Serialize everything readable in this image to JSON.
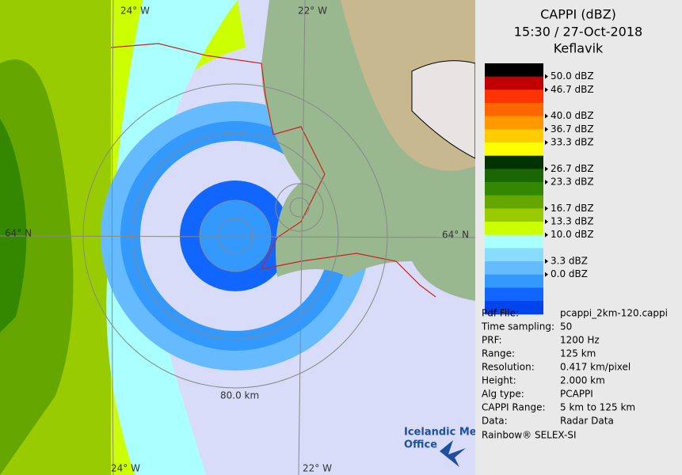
{
  "header": {
    "title": "CAPPI (dBZ)",
    "time": "15:30 / 27-Oct-2018",
    "station": "Keflavik"
  },
  "legend": {
    "colors": [
      "#000000",
      "#c00000",
      "#ff3300",
      "#ff6600",
      "#ff9900",
      "#ffcc00",
      "#ffff00",
      "#003300",
      "#1a6600",
      "#338800",
      "#66a600",
      "#99cc00",
      "#ccff00",
      "#aaffff",
      "#88ddff",
      "#66bbff",
      "#3399ff",
      "#1166ff",
      "#0044ee"
    ],
    "labels": [
      "50.0 dBZ",
      "46.7 dBZ",
      "40.0 dBZ",
      "36.7 dBZ",
      "33.3 dBZ",
      "26.7 dBZ",
      "23.3 dBZ",
      "16.7 dBZ",
      "13.3 dBZ",
      "10.0 dBZ",
      "3.3 dBZ",
      "0.0 dBZ"
    ]
  },
  "info": {
    "rows": [
      [
        "Pdf File:",
        "pcappi_2km-120.cappi"
      ],
      [
        "Time sampling:",
        "50"
      ],
      [
        "PRF:",
        "1200 Hz"
      ],
      [
        "Range:",
        "125 km"
      ],
      [
        "Resolution:",
        "0.417 km/pixel"
      ],
      [
        "Height:",
        "2.000 km"
      ],
      [
        "Alg type:",
        "PCAPPI"
      ],
      [
        "CAPPI Range:",
        "5 km to 125 km"
      ],
      [
        "Data:",
        "Radar Data"
      ]
    ],
    "credit": "Rainbow® SELEX-SI"
  },
  "map": {
    "labels": [
      "24° W",
      "22° W",
      "64° N",
      "64° N",
      "80.0 km",
      "24° W",
      "22° W"
    ],
    "logo": [
      "Icelandic Met",
      "Office"
    ]
  }
}
